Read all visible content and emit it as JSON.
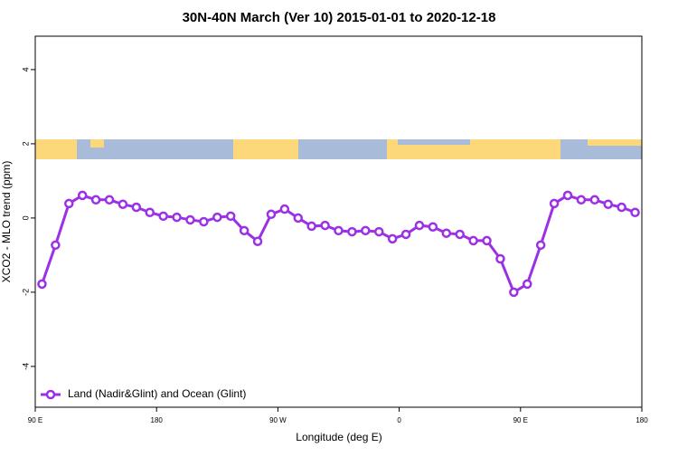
{
  "chart_data": {
    "type": "line",
    "title": "30N-40N March (Ver 10)   2015-01-01 to 2020-12-18",
    "xlabel": "Longitude (deg E)",
    "ylabel": "XCO2 - MLO trend (ppm)",
    "x": [
      95,
      105,
      115,
      125,
      135,
      145,
      155,
      165,
      175,
      185,
      195,
      205,
      215,
      225,
      235,
      245,
      255,
      265,
      275,
      285,
      295,
      305,
      315,
      325,
      335,
      345,
      355,
      365,
      375,
      385,
      395,
      405,
      415,
      425,
      435,
      445,
      455,
      465,
      475,
      485,
      495,
      505,
      515,
      525,
      535
    ],
    "series": [
      {
        "name": "Land (Nadir&Glint) and Ocean (Glint)",
        "color": "#9b30e6",
        "values": [
          -1.78,
          -0.73,
          0.39,
          0.61,
          0.49,
          0.49,
          0.37,
          0.29,
          0.15,
          0.05,
          0.02,
          -0.05,
          -0.1,
          0.02,
          0.05,
          -0.34,
          -0.63,
          0.1,
          0.24,
          0.0,
          -0.22,
          -0.2,
          -0.34,
          -0.37,
          -0.34,
          -0.37,
          -0.56,
          -0.44,
          -0.2,
          -0.24,
          -0.41,
          -0.44,
          -0.61,
          -0.61,
          -1.1,
          -2.0,
          -1.78,
          -0.73,
          0.39,
          0.61,
          0.49,
          0.49,
          0.37,
          0.29,
          0.15
        ]
      }
    ],
    "xlim": [
      90,
      540
    ],
    "xticks": [
      {
        "value": 90,
        "label": "90 E"
      },
      {
        "value": 180,
        "label": "180"
      },
      {
        "value": 270,
        "label": "90 W"
      },
      {
        "value": 360,
        "label": "0"
      },
      {
        "value": 450,
        "label": "90 E"
      },
      {
        "value": 540,
        "label": "180"
      }
    ],
    "ylim": [
      -5.1,
      4.9
    ],
    "yticks": [
      -4,
      -2,
      0,
      2,
      4
    ],
    "legend": "bottom-left"
  }
}
